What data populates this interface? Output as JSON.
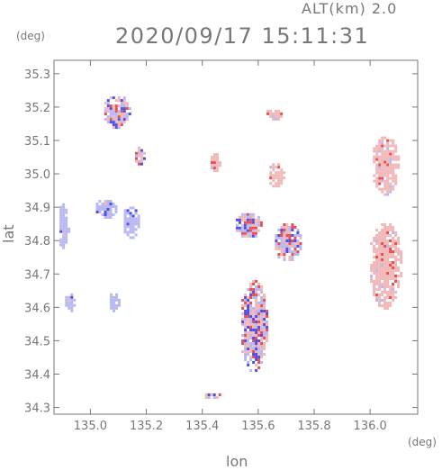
{
  "header": {
    "altitude": "ALT(km) 2.0",
    "datetime": "2020/09/17 15:11:31"
  },
  "axes": {
    "x_unit": "(deg)",
    "y_unit": "(deg)",
    "xlabel": "lon",
    "ylabel": "lat",
    "x_ticks": [
      "135.0",
      "135.2",
      "135.4",
      "135.6",
      "135.8",
      "136.0"
    ],
    "y_ticks": [
      "34.3",
      "34.4",
      "34.5",
      "34.6",
      "34.7",
      "34.8",
      "34.9",
      "35.0",
      "35.1",
      "35.2",
      "35.3"
    ]
  },
  "chart_data": {
    "type": "heatmap",
    "title": "2020/09/17 15:11:31",
    "subtitle": "ALT(km) 2.0",
    "xlabel": "lon",
    "ylabel": "lat",
    "xlim": [
      134.87,
      136.17
    ],
    "ylim": [
      34.28,
      35.34
    ],
    "x_ticks": [
      135.0,
      135.2,
      135.4,
      135.6,
      135.8,
      136.0
    ],
    "y_ticks": [
      34.3,
      34.4,
      34.5,
      34.6,
      34.7,
      34.8,
      34.9,
      35.0,
      35.1,
      35.2,
      35.3
    ],
    "colors": {
      "positive": "#f0b8b8",
      "positive_strong": "#e85050",
      "negative": "#b8b8f0",
      "negative_strong": "#5050e8",
      "frame": "#777777"
    },
    "echo_regions": [
      {
        "lon": 136.05,
        "lat": 35.03,
        "r_lon": 0.05,
        "r_lat": 0.09,
        "sign": "positive"
      },
      {
        "lon": 136.05,
        "lat": 34.73,
        "r_lon": 0.06,
        "r_lat": 0.13,
        "sign": "positive"
      },
      {
        "lon": 135.58,
        "lat": 34.55,
        "r_lon": 0.05,
        "r_lat": 0.14,
        "sign": "mixed"
      },
      {
        "lon": 135.65,
        "lat": 35.18,
        "r_lon": 0.03,
        "r_lat": 0.02,
        "sign": "positive"
      },
      {
        "lon": 135.66,
        "lat": 35.0,
        "r_lon": 0.03,
        "r_lat": 0.04,
        "sign": "positive"
      },
      {
        "lon": 135.09,
        "lat": 35.19,
        "r_lon": 0.05,
        "r_lat": 0.05,
        "sign": "mixed"
      },
      {
        "lon": 134.92,
        "lat": 34.62,
        "r_lon": 0.02,
        "r_lat": 0.03,
        "sign": "negative"
      },
      {
        "lon": 134.9,
        "lat": 34.85,
        "r_lon": 0.02,
        "r_lat": 0.07,
        "sign": "negative"
      },
      {
        "lon": 135.05,
        "lat": 34.9,
        "r_lon": 0.04,
        "r_lat": 0.03,
        "sign": "negative"
      },
      {
        "lon": 135.14,
        "lat": 34.86,
        "r_lon": 0.03,
        "r_lat": 0.05,
        "sign": "negative"
      },
      {
        "lon": 135.08,
        "lat": 34.62,
        "r_lon": 0.02,
        "r_lat": 0.03,
        "sign": "negative"
      },
      {
        "lon": 135.7,
        "lat": 34.8,
        "r_lon": 0.05,
        "r_lat": 0.06,
        "sign": "mixed"
      },
      {
        "lon": 135.56,
        "lat": 34.85,
        "r_lon": 0.05,
        "r_lat": 0.04,
        "sign": "mixed"
      },
      {
        "lon": 135.17,
        "lat": 35.06,
        "r_lon": 0.02,
        "r_lat": 0.03,
        "sign": "mixed"
      },
      {
        "lon": 135.44,
        "lat": 35.04,
        "r_lon": 0.02,
        "r_lat": 0.03,
        "sign": "positive"
      },
      {
        "lon": 135.43,
        "lat": 34.34,
        "r_lon": 0.03,
        "r_lat": 0.01,
        "sign": "mixed"
      }
    ]
  }
}
